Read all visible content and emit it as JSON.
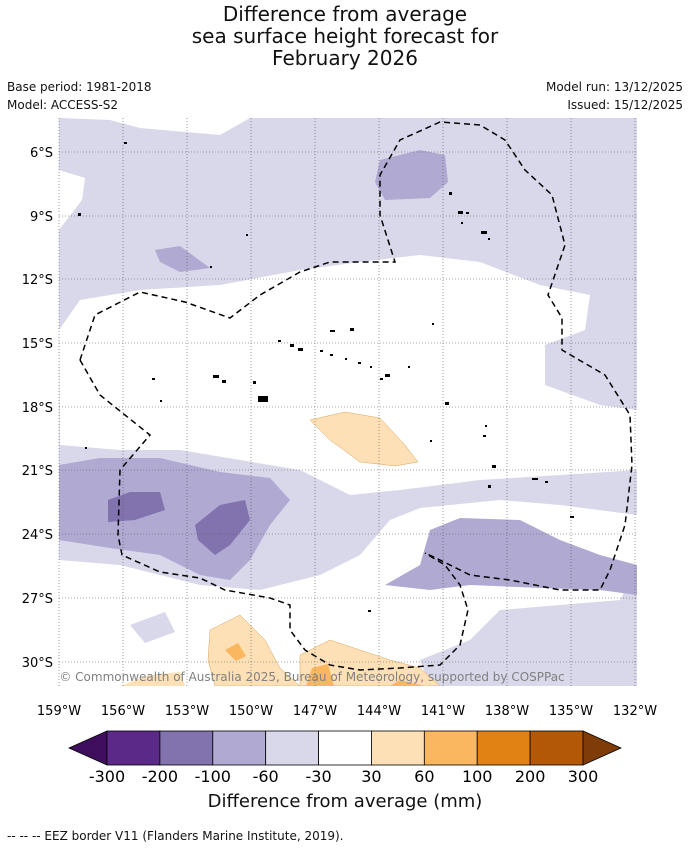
{
  "title": {
    "line1": "Difference from average",
    "line2": "sea surface height forecast for",
    "line3": "February 2026"
  },
  "meta": {
    "base_period": "Base period: 1981-2018",
    "model": "Model: ACCESS-S2",
    "model_run": "Model run: 13/12/2025",
    "issued": "Issued: 15/12/2025"
  },
  "map": {
    "lat_labels": [
      "6°S",
      "9°S",
      "12°S",
      "15°S",
      "18°S",
      "21°S",
      "24°S",
      "27°S",
      "30°S"
    ],
    "lon_labels": [
      "159°W",
      "156°W",
      "153°W",
      "150°W",
      "147°W",
      "144°W",
      "141°W",
      "138°W",
      "135°W",
      "132°W"
    ],
    "copyright": "© Commonwealth of Australia 2025, Bureau of Meteorology, supported by COSPPac"
  },
  "colorbar": {
    "ticks": [
      "-300",
      "-200",
      "-100",
      "-60",
      "-30",
      "30",
      "60",
      "100",
      "200",
      "300"
    ],
    "colors": [
      "#3f0f5e",
      "#5b2a89",
      "#8272ad",
      "#b0a9d2",
      "#d8d8ea",
      "#ffffff",
      "#fee0b6",
      "#fbb75f",
      "#e08214",
      "#b35806",
      "#7f3b08"
    ],
    "label": "Difference from average (mm)"
  },
  "footer": {
    "legend": "--  --  -- EEZ border V11 (Flanders Marine Institute, 2019)."
  }
}
